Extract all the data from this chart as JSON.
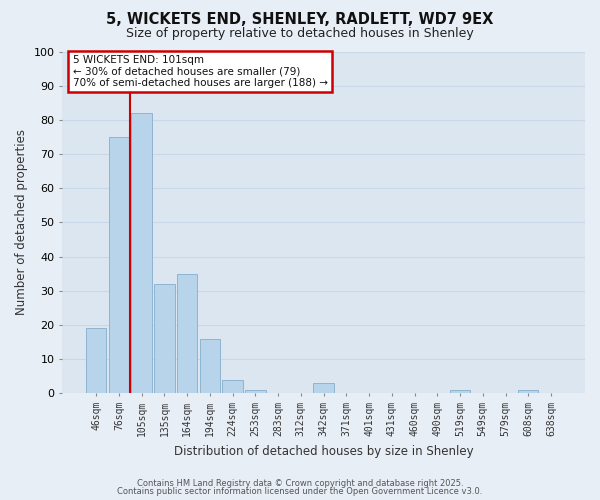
{
  "title": "5, WICKETS END, SHENLEY, RADLETT, WD7 9EX",
  "subtitle": "Size of property relative to detached houses in Shenley",
  "xlabel": "Distribution of detached houses by size in Shenley",
  "ylabel": "Number of detached properties",
  "bar_labels": [
    "46sqm",
    "76sqm",
    "105sqm",
    "135sqm",
    "164sqm",
    "194sqm",
    "224sqm",
    "253sqm",
    "283sqm",
    "312sqm",
    "342sqm",
    "371sqm",
    "401sqm",
    "431sqm",
    "460sqm",
    "490sqm",
    "519sqm",
    "549sqm",
    "579sqm",
    "608sqm",
    "638sqm"
  ],
  "bar_values": [
    19,
    75,
    82,
    32,
    35,
    16,
    4,
    1,
    0,
    0,
    3,
    0,
    0,
    0,
    0,
    0,
    1,
    0,
    0,
    1,
    0
  ],
  "bar_color": "#b8d4ea",
  "bar_edge_color": "#85aecb",
  "vline_color": "#cc0000",
  "ylim": [
    0,
    100
  ],
  "yticks": [
    0,
    10,
    20,
    30,
    40,
    50,
    60,
    70,
    80,
    90,
    100
  ],
  "annotation_line1": "5 WICKETS END: 101sqm",
  "annotation_line2": "← 30% of detached houses are smaller (79)",
  "annotation_line3": "70% of semi-detached houses are larger (188) →",
  "bg_color": "#e8eef5",
  "plot_bg_color": "#dce6f0",
  "grid_color": "#c8d8e8",
  "footer_line1": "Contains HM Land Registry data © Crown copyright and database right 2025.",
  "footer_line2": "Contains public sector information licensed under the Open Government Licence v3.0."
}
